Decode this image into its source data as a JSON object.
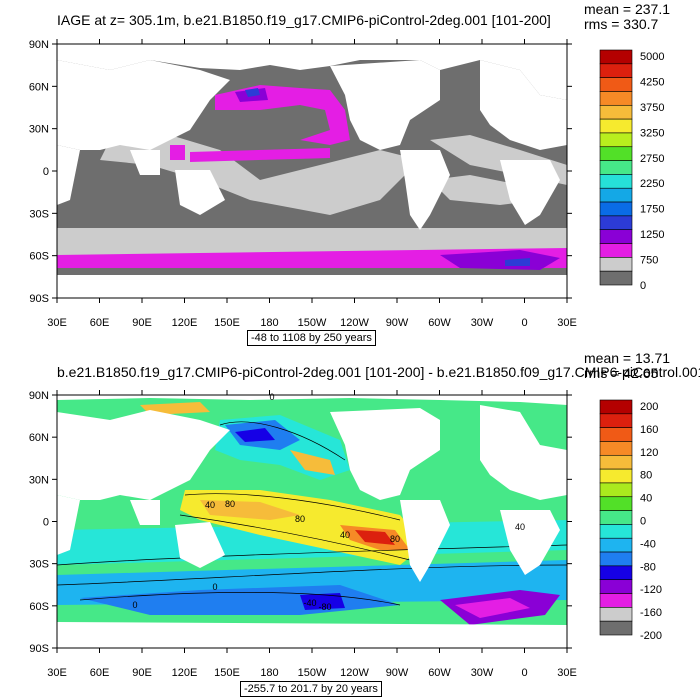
{
  "colors": {
    "land": "#ffffff",
    "frame": "#000000",
    "top_levels": [
      "#6e6e6e",
      "#cccccc",
      "#e41ee4",
      "#8a00d6",
      "#2c3bd6",
      "#0a6ce6",
      "#14a8e6",
      "#26e0d8",
      "#46e888",
      "#52e028",
      "#b9ee1e",
      "#f6ea2e",
      "#f6bc3a",
      "#f68a26",
      "#f05a16",
      "#dc200e",
      "#b40000"
    ],
    "bottom_levels": [
      "#6e6e6e",
      "#cccccc",
      "#e41ee4",
      "#8a00d6",
      "#1600e6",
      "#1f7ef0",
      "#1eb4f0",
      "#26e6d8",
      "#46e888",
      "#52e028",
      "#aaea1e",
      "#f6ea2e",
      "#f6bc3a",
      "#f68a26",
      "#f05a16",
      "#dc200e",
      "#b40000"
    ]
  },
  "top": {
    "title": "IAGE at z= 305.1m, b.e21.B1850.f19_g17.CMIP6-piControl-2deg.001 [101-200]",
    "mean": "mean = 237.1",
    "rms": "rms = 330.7",
    "range": "-48 to 1108 by 250 years",
    "lat_labels": [
      "90N",
      "60N",
      "30N",
      "0",
      "30S",
      "60S",
      "90S"
    ],
    "lon_labels": [
      "30E",
      "60E",
      "90E",
      "120E",
      "150E",
      "180",
      "150W",
      "120W",
      "90W",
      "60W",
      "30W",
      "0",
      "30E"
    ],
    "colorbar_labels": [
      "5000",
      "4250",
      "3750",
      "3250",
      "2750",
      "2250",
      "1750",
      "1250",
      "750",
      "0"
    ]
  },
  "bottom": {
    "title": "b.e21.B1850.f19_g17.CMIP6-piControl-2deg.001 [101-200] - b.e21.B1850.f09_g17.CMIP6-piControl.001",
    "mean": "mean = 13.71",
    "rms": "rms = 42.65",
    "range": "-255.7 to 201.7 by 20 years",
    "lat_labels": [
      "90N",
      "60N",
      "30N",
      "0",
      "30S",
      "60S",
      "90S"
    ],
    "lon_labels": [
      "30E",
      "60E",
      "90E",
      "120E",
      "150E",
      "180",
      "150W",
      "120W",
      "90W",
      "60W",
      "30W",
      "0",
      "30E"
    ],
    "colorbar_labels": [
      "200",
      "160",
      "120",
      "80",
      "40",
      "0",
      "-40",
      "-80",
      "-120",
      "-160",
      "-200"
    ],
    "contour_labels": [
      "0",
      "40",
      "80",
      "80",
      "40",
      "80",
      "40",
      "0",
      "0",
      "-40",
      "-80"
    ]
  }
}
